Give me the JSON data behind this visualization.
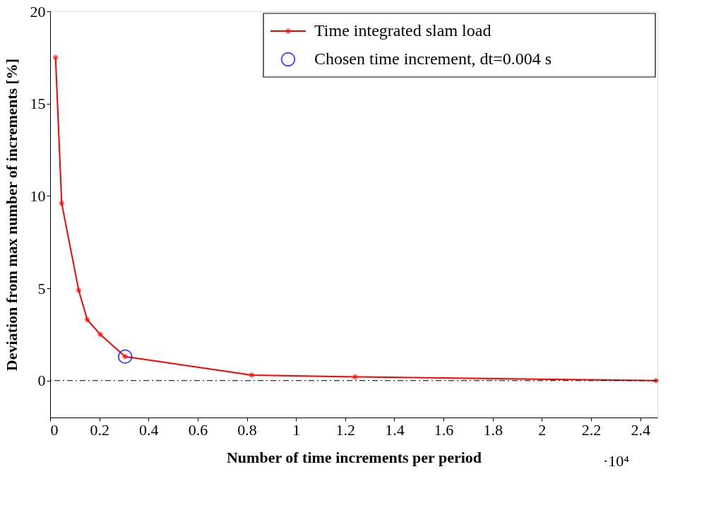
{
  "chart_data": {
    "type": "line",
    "xlabel": "Number of time increments per period",
    "ylabel": "Deviation from max number of increments [%]",
    "annotations": [
      "·10⁴"
    ],
    "series": [
      {
        "name": "Time integrated slam load",
        "color": "#ff0000",
        "marker": "cross",
        "x": [
          0.022,
          0.047,
          0.116,
          0.151,
          0.204,
          0.305,
          0.82,
          1.24,
          2.464
        ],
        "values": [
          17.5,
          9.6,
          4.9,
          3.3,
          2.5,
          1.3,
          0.3,
          0.2,
          0
        ]
      },
      {
        "name": "Chosen time increment, dt=0.004 s",
        "color": "#0000ff",
        "type": "scatter",
        "marker": "circle",
        "x": [
          0.305
        ],
        "values": [
          1.3
        ]
      }
    ],
    "xlim": [
      0,
      2.47
    ],
    "xticks": [
      {
        "value": 0,
        "label": "0"
      },
      0.2,
      0.4,
      0.6,
      0.8,
      {
        "value": 1,
        "label": "1"
      },
      1.2,
      1.4,
      1.6,
      1.8,
      {
        "value": 2,
        "label": "2"
      },
      2.2,
      2.4
    ],
    "ylim": [
      -2,
      20
    ],
    "yticks": [
      0,
      5,
      10,
      15,
      20
    ],
    "ref_lines": [
      {
        "axis": "y",
        "value": 0,
        "color": "#000000",
        "line_style": "dashdot"
      }
    ],
    "grid": false,
    "legend": "top right"
  }
}
